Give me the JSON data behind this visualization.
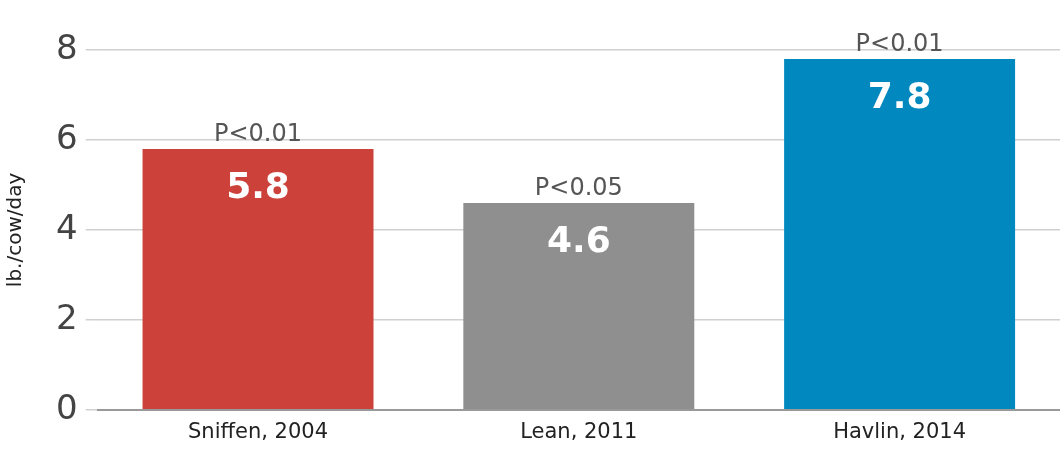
{
  "chart_data": {
    "type": "bar",
    "ylabel": "lb./cow/day",
    "categories": [
      "Sniffen, 2004",
      "Lean, 2011",
      "Havlin, 2014"
    ],
    "values": [
      5.8,
      4.6,
      7.8
    ],
    "colors": [
      "#cc4139",
      "#8f8f8f",
      "#0088bf"
    ],
    "ylim": [
      0,
      8
    ],
    "yticks": [
      0,
      2,
      4,
      6,
      8
    ],
    "grid": "y",
    "legend": false,
    "data_labels": true,
    "annotations": [
      {
        "text": "P<0.01",
        "x": "Sniffen, 2004",
        "y": 5.8
      },
      {
        "text": "P<0.05",
        "x": "Lean, 2011",
        "y": 4.6
      },
      {
        "text": "P<0.01",
        "x": "Havlin, 2014",
        "y": 7.8
      }
    ]
  }
}
